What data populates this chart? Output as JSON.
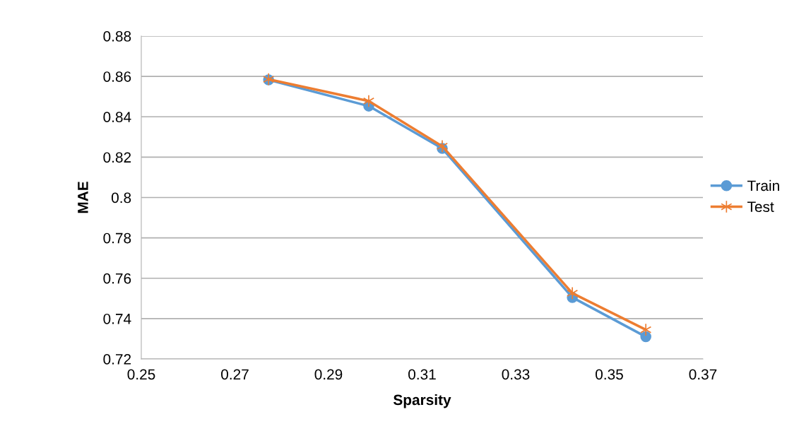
{
  "chart_data": {
    "type": "line",
    "xlabel": "Sparsity",
    "ylabel": "MAE",
    "xlim": [
      0.25,
      0.37
    ],
    "xticks": [
      {
        "value": 0.25,
        "label": "0.25"
      },
      {
        "value": 0.27,
        "label": "0.27"
      },
      {
        "value": 0.29,
        "label": "0.29"
      },
      {
        "value": 0.31,
        "label": "0.31"
      },
      {
        "value": 0.33,
        "label": "0.33"
      },
      {
        "value": 0.35,
        "label": "0.35"
      },
      {
        "value": 0.37,
        "label": "0.37"
      }
    ],
    "ylim": [
      0.72,
      0.88
    ],
    "yticks": [
      {
        "value": 0.72,
        "label": "0.72"
      },
      {
        "value": 0.74,
        "label": "0.74"
      },
      {
        "value": 0.76,
        "label": "0.76"
      },
      {
        "value": 0.78,
        "label": "0.78"
      },
      {
        "value": 0.8,
        "label": "0.8"
      },
      {
        "value": 0.82,
        "label": "0.82"
      },
      {
        "value": 0.84,
        "label": "0.84"
      },
      {
        "value": 0.86,
        "label": "0.86"
      },
      {
        "value": 0.88,
        "label": "0.88"
      }
    ],
    "x": [
      0.2772,
      0.2986,
      0.3143,
      0.3421,
      0.3578
    ],
    "series": [
      {
        "name": "Train",
        "color": "#5b9bd5",
        "marker": "circle",
        "values": [
          0.8583,
          0.8453,
          0.8243,
          0.7505,
          0.731
        ]
      },
      {
        "name": "Test",
        "color": "#ed7d31",
        "marker": "cross",
        "values": [
          0.8586,
          0.8478,
          0.8254,
          0.7526,
          0.7345
        ]
      }
    ],
    "grid": "y",
    "legend": "right",
    "line_style": "solid"
  }
}
